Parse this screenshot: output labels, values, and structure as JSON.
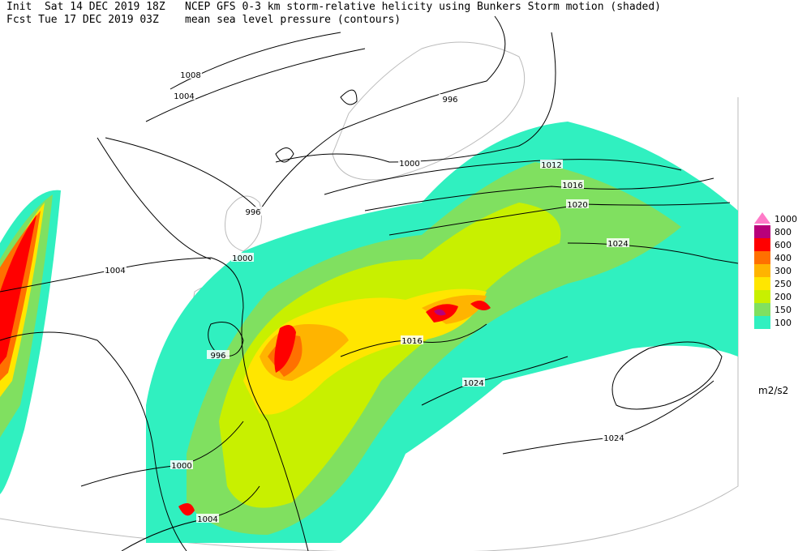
{
  "header": {
    "init": "Init  Sat 14 DEC 2019 18Z",
    "fcst": "Fcst Tue 17 DEC 2019 03Z",
    "title": "NCEP GFS 0-3 km storm-relative helicity using Bunkers Storm motion (shaded)",
    "subtitle": "mean sea level pressure (contours)"
  },
  "legend": {
    "levels": [
      {
        "value": 1000,
        "color": "#ff7ac8"
      },
      {
        "value": 800,
        "color": "#b8007a"
      },
      {
        "value": 600,
        "color": "#ff0000"
      },
      {
        "value": 400,
        "color": "#ff7000"
      },
      {
        "value": 300,
        "color": "#ffb400"
      },
      {
        "value": 250,
        "color": "#ffe600"
      },
      {
        "value": 200,
        "color": "#c8f000"
      },
      {
        "value": 150,
        "color": "#80e060"
      },
      {
        "value": 100,
        "color": "#30f0c0"
      }
    ],
    "unit": "m2/s2"
  },
  "contour_labels": [
    1008,
    1004,
    996,
    1000,
    1012,
    1016,
    1020,
    1024,
    996,
    1000,
    1004,
    996,
    1016,
    1024,
    1024,
    1000,
    1004
  ]
}
